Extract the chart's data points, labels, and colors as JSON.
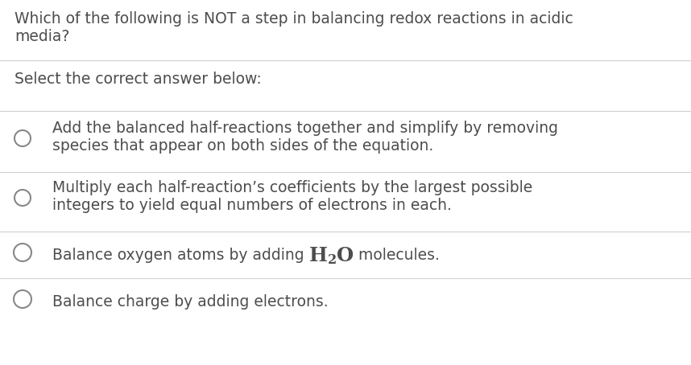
{
  "background_color": "#ffffff",
  "text_color": "#4d4d4d",
  "question_line1": "Which of the following is NOT a step in balancing redox reactions in acidic",
  "question_line2": "media?",
  "prompt": "Select the correct answer below:",
  "opt1_line1": "Add the balanced half-reactions together and simplify by removing",
  "opt1_line2": "species that appear on both sides of the equation.",
  "opt2_line1": "Multiply each half-reaction’s coefficients by the largest possible",
  "opt2_line2": "integers to yield equal numbers of electrons in each.",
  "opt3_prefix": "Balance oxygen atoms by adding ",
  "opt3_suffix": " molecules.",
  "opt4": "Balance charge by adding electrons.",
  "divider_color": "#d0d0d0",
  "font_size": 13.5,
  "circle_color": "#888888"
}
